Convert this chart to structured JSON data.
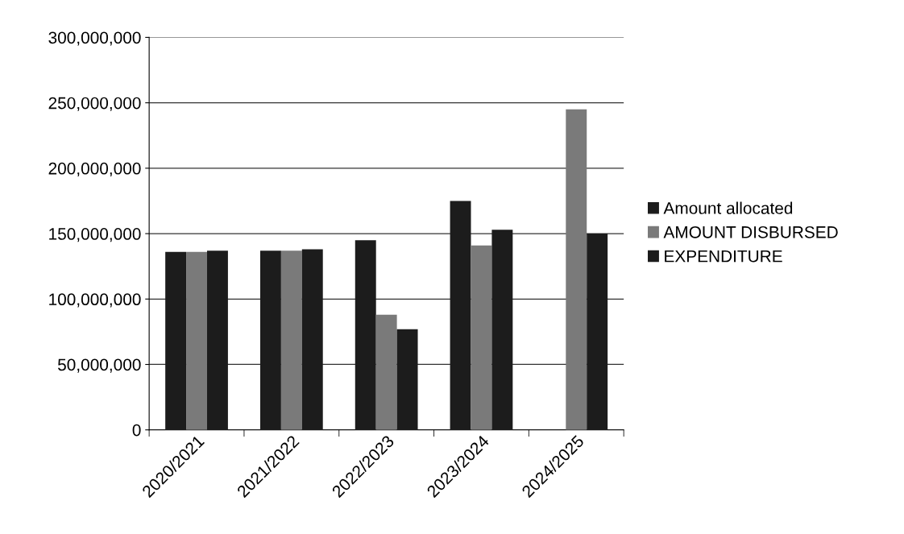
{
  "chart_data": {
    "type": "bar",
    "categories": [
      "2020/2021",
      "2021/2022",
      "2022/2023",
      "2023/2024",
      "2024/2025"
    ],
    "series": [
      {
        "name": "Amount allocated",
        "color": "#1c1c1c",
        "values": [
          136000000,
          137000000,
          145000000,
          175000000,
          null
        ]
      },
      {
        "name": "AMOUNT DISBURSED",
        "color": "#7a7a7a",
        "values": [
          136000000,
          137000000,
          88000000,
          141000000,
          245000000
        ]
      },
      {
        "name": "EXPENDITURE",
        "color": "#1c1c1c",
        "values": [
          137000000,
          138000000,
          77000000,
          153000000,
          150000000
        ]
      }
    ],
    "ylim": [
      0,
      300000000
    ],
    "yticks": [
      {
        "value": 0,
        "label": "0"
      },
      {
        "value": 50000000,
        "label": "50,000,000"
      },
      {
        "value": 100000000,
        "label": "100,000,000"
      },
      {
        "value": 150000000,
        "label": "150,000,000"
      },
      {
        "value": 200000000,
        "label": "200,000,000"
      },
      {
        "value": 250000000,
        "label": "250,000,000"
      },
      {
        "value": 300000000,
        "label": "300,000,000"
      }
    ],
    "grid": "y",
    "legend": "right"
  }
}
